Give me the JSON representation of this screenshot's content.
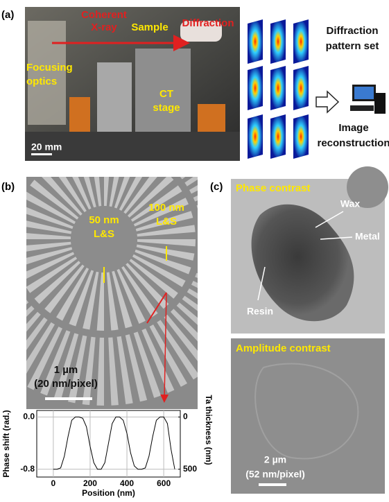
{
  "panel_a": {
    "label": "(a)",
    "coherent_xray": [
      "Coherent",
      "X-ray"
    ],
    "sample": "Sample",
    "diffraction": "Diffraction",
    "focusing_optics": [
      "Focusing",
      "optics"
    ],
    "ct_stage": [
      "CT",
      "stage"
    ],
    "scale_bar": "20 mm",
    "pattern_set": [
      "Diffraction",
      "pattern set"
    ],
    "reconstruction": [
      "Image",
      "reconstruction"
    ]
  },
  "panel_b": {
    "label": "(b)",
    "fine": [
      "50 nm",
      "L&S"
    ],
    "coarse": [
      "100 nm",
      "L&S"
    ],
    "scale_bar": [
      "1 µm",
      "(20 nm/pixel)"
    ]
  },
  "panel_c": {
    "label": "(c)",
    "phase_title": "Phase contrast",
    "wax": "Wax",
    "metal": "Metal",
    "resin": "Resin",
    "amplitude_title": "Amplitude contrast",
    "scale_bar": [
      "2 µm",
      "(52 nm/pixel)"
    ]
  },
  "chart_data": {
    "type": "line",
    "xlabel": "Position (nm)",
    "ylabel": "Phase shift (rad.)",
    "y2label": "Ta thickness (nm)",
    "x": [
      0,
      20,
      40,
      60,
      80,
      100,
      120,
      140,
      160,
      180,
      200,
      220,
      240,
      260,
      280,
      300,
      320,
      340,
      360,
      380,
      400,
      420,
      440,
      460,
      480,
      500,
      520,
      540,
      560,
      580,
      600,
      620,
      640,
      660
    ],
    "series": [
      {
        "color": "#000000",
        "values": [
          -0.8,
          -0.8,
          -0.78,
          -0.6,
          -0.3,
          -0.05,
          0,
          0,
          -0.02,
          -0.15,
          -0.45,
          -0.7,
          -0.8,
          -0.8,
          -0.7,
          -0.4,
          -0.1,
          0,
          0,
          -0.05,
          -0.25,
          -0.55,
          -0.75,
          -0.8,
          -0.8,
          -0.78,
          -0.6,
          -0.3,
          -0.05,
          0,
          0,
          -0.1,
          -0.5,
          -0.8
        ]
      }
    ],
    "xlim": [
      -90,
      690
    ],
    "xticks": [
      0,
      200,
      400,
      600
    ],
    "ylim": [
      -0.92,
      0.1
    ],
    "yticks": [
      {
        "value": 0,
        "label": "0.0"
      },
      -0.8
    ],
    "y2lim": [
      575,
      -62.5
    ],
    "y2ticks": [
      0,
      500
    ],
    "grid": true
  }
}
